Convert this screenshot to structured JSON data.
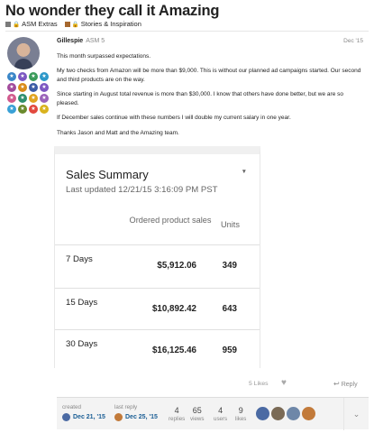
{
  "topic": {
    "title": "No wonder they call it Amazing",
    "categories": [
      {
        "label": "ASM Extras",
        "color": "#7b7b7b"
      },
      {
        "label": "Stories & Inspiration",
        "color": "#a6682f"
      }
    ]
  },
  "post": {
    "author": "Gillespie",
    "author_tag": "ASM 5",
    "date": "Dec '15",
    "paragraphs": [
      "This month surpassed expectations.",
      "My two checks from Amazon will be more than $9,000. This is without our planned ad campaigns started. Our second and third products are on the way.",
      "Since starting in August total revenue is more than $30,000. I know that others have done better, but we are so pleased.",
      "If December sales continue with these numbers I will double my current salary in one year.",
      "Thanks Jason and Matt and the Amazing team."
    ],
    "badges": [
      {
        "color": "#3a86c8"
      },
      {
        "color": "#7c57c2"
      },
      {
        "color": "#3a9b5a"
      },
      {
        "color": "#2d98c9"
      },
      {
        "color": "#a24b9c"
      },
      {
        "color": "#d98b1a"
      },
      {
        "color": "#3b5ba5"
      },
      {
        "color": "#7c57c2"
      },
      {
        "color": "#d15a8d"
      },
      {
        "color": "#2e8f6e"
      },
      {
        "color": "#e0a420"
      },
      {
        "color": "#9a63b9"
      },
      {
        "color": "#39a0d6"
      },
      {
        "color": "#6a8a2c"
      },
      {
        "color": "#e2483e"
      },
      {
        "color": "#d9b21d"
      }
    ],
    "likes_label": "5 Likes",
    "reply_label": "Reply"
  },
  "sales_summary": {
    "title": "Sales Summary",
    "subtitle": "Last updated 12/21/15 3:16:09 PM PST",
    "columns": [
      "Ordered product sales",
      "Units"
    ],
    "rows": [
      {
        "period": "7 Days",
        "sales": "$5,912.06",
        "units": "349"
      },
      {
        "period": "15 Days",
        "sales": "$10,892.42",
        "units": "643"
      },
      {
        "period": "30 Days",
        "sales": "$16,125.46",
        "units": "959"
      }
    ]
  },
  "footer": {
    "created_label": "created",
    "created_value": "Dec 21, '15",
    "last_reply_label": "last reply",
    "last_reply_value": "Dec 25, '15",
    "stats": [
      {
        "n": "4",
        "label": "replies"
      },
      {
        "n": "65",
        "label": "views"
      },
      {
        "n": "4",
        "label": "users"
      },
      {
        "n": "9",
        "label": "likes"
      }
    ],
    "participant_colors": [
      "#4b6aa3",
      "#7a6a55",
      "#6e87a8",
      "#c27a3a"
    ]
  }
}
